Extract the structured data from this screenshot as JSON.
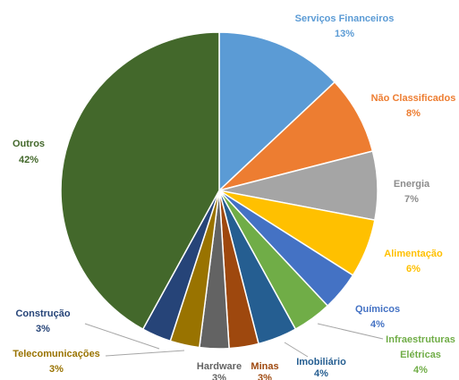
{
  "chart_data": {
    "type": "pie",
    "title": "",
    "slices": [
      {
        "label": "Serviços Financeiros",
        "value": 13,
        "pct_text": "13%",
        "color": "#5b9bd5"
      },
      {
        "label": "Não Classificados",
        "value": 8,
        "pct_text": "8%",
        "color": "#ed7d31"
      },
      {
        "label": "Energia",
        "value": 7,
        "pct_text": "7%",
        "color": "#a5a5a5"
      },
      {
        "label": "Alimentação",
        "value": 6,
        "pct_text": "6%",
        "color": "#ffc000"
      },
      {
        "label": "Químicos",
        "value": 4,
        "pct_text": "4%",
        "color": "#4472c4"
      },
      {
        "label": "Infraestruturas Elétricas",
        "value": 4,
        "pct_text": "4%",
        "color": "#70ad47"
      },
      {
        "label": "Imobiliário",
        "value": 4,
        "pct_text": "4%",
        "color": "#255e91"
      },
      {
        "label": "Minas",
        "value": 3,
        "pct_text": "3%",
        "color": "#9e480e"
      },
      {
        "label": "Hardware",
        "value": 3,
        "pct_text": "3%",
        "color": "#636363"
      },
      {
        "label": "Telecomunicações",
        "value": 3,
        "pct_text": "3%",
        "color": "#997300"
      },
      {
        "label": "Construção",
        "value": 3,
        "pct_text": "3%",
        "color": "#264478"
      },
      {
        "label": "Outros",
        "value": 42,
        "pct_text": "42%",
        "color": "#43682b"
      }
    ],
    "legend": "none",
    "data_labels": "outside"
  }
}
